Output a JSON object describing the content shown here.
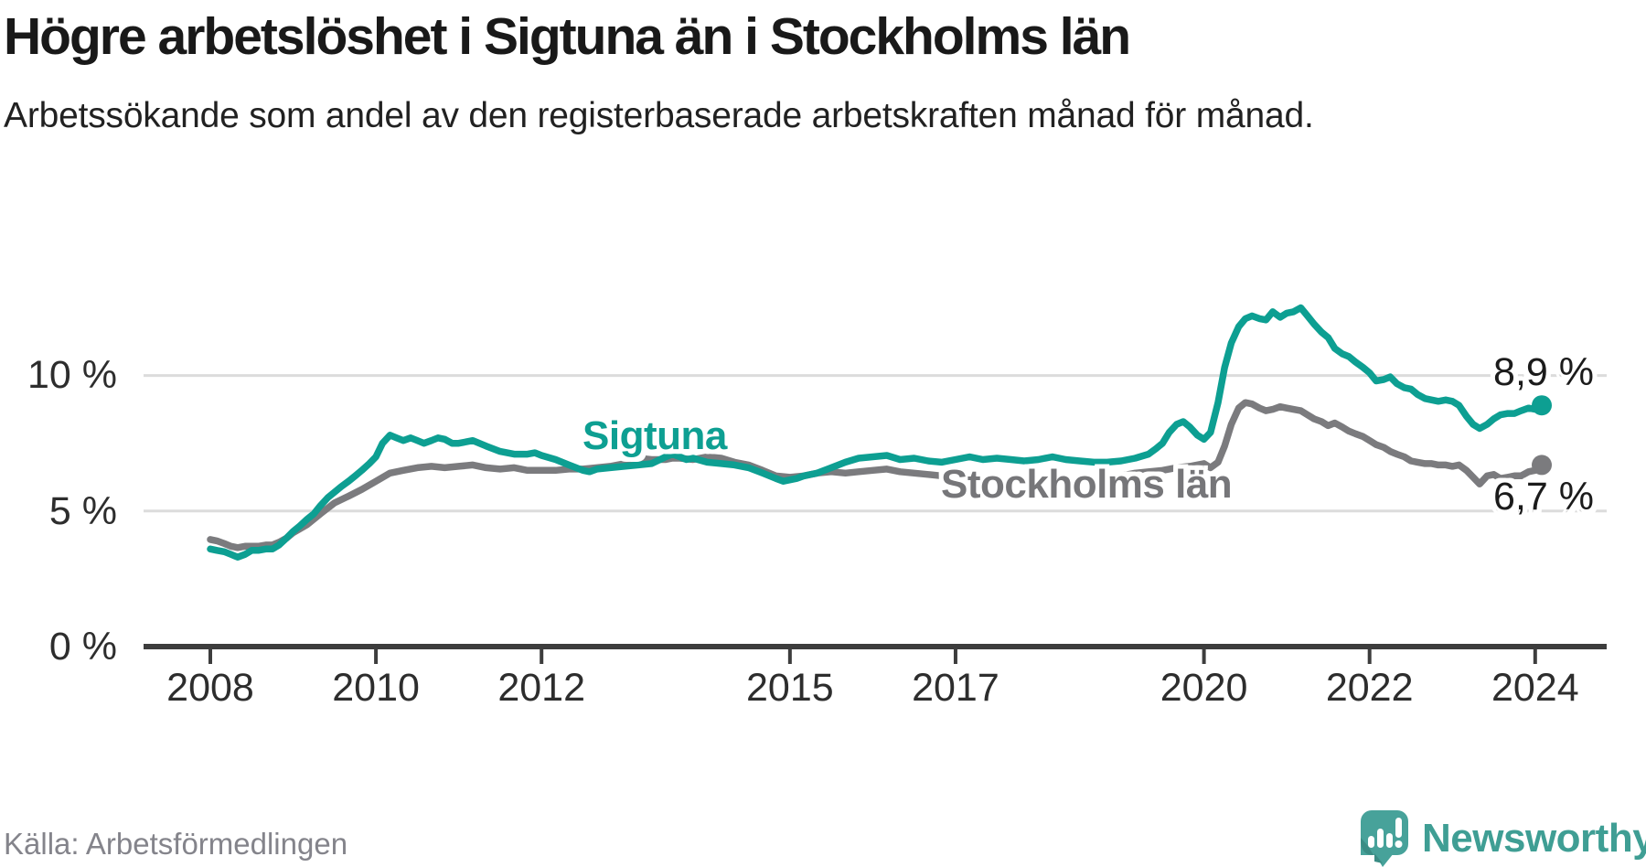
{
  "header": {
    "title": "Högre arbetslöshet i Sigtuna än i Stockholms län",
    "subtitle": "Arbetssökande som andel av den registerbaserade arbetskraften månad för månad."
  },
  "footer": {
    "source": "Källa: Arbetsförmedlingen",
    "logo_text": "Newsworthy"
  },
  "colors": {
    "sigtuna_teal": "#0d9f92",
    "stockholm_gray": "#7b7b7e",
    "grid": "#dcdcdc",
    "axis": "#3d3d3d",
    "logo_teal": "#47a29a",
    "logo_text_teal": "#3f9e94",
    "end_label_text": "#1b1b1b"
  },
  "chart_data": {
    "type": "line",
    "title": "Högre arbetslöshet i Sigtuna än i Stockholms län",
    "xlabel": "",
    "ylabel": "Arbetssökande som andel av den registerbaserade arbetskraften",
    "unit": "%",
    "xlim": [
      2007.6,
      2024.6
    ],
    "ylim": [
      0,
      13.5
    ],
    "grid": "horizontal",
    "legend_position": "inline-labels",
    "x_ticks": [
      2008,
      2010,
      2012,
      2015,
      2017,
      2020,
      2022,
      2024
    ],
    "y_ticks": [
      {
        "value": 0,
        "label": "0 %"
      },
      {
        "value": 5,
        "label": "5 %"
      },
      {
        "value": 10,
        "label": "10 %"
      }
    ],
    "series": [
      {
        "name": "Sigtuna",
        "color": "#0d9f92",
        "end_label": "8,9 %",
        "end_value": 8.9,
        "points": [
          [
            2008.0,
            3.6
          ],
          [
            2008.08,
            3.55
          ],
          [
            2008.17,
            3.5
          ],
          [
            2008.25,
            3.4
          ],
          [
            2008.33,
            3.3
          ],
          [
            2008.42,
            3.4
          ],
          [
            2008.5,
            3.55
          ],
          [
            2008.58,
            3.55
          ],
          [
            2008.67,
            3.6
          ],
          [
            2008.75,
            3.6
          ],
          [
            2008.83,
            3.75
          ],
          [
            2008.92,
            4.0
          ],
          [
            2009.0,
            4.25
          ],
          [
            2009.08,
            4.45
          ],
          [
            2009.17,
            4.7
          ],
          [
            2009.25,
            4.9
          ],
          [
            2009.33,
            5.2
          ],
          [
            2009.42,
            5.5
          ],
          [
            2009.5,
            5.7
          ],
          [
            2009.58,
            5.9
          ],
          [
            2009.67,
            6.1
          ],
          [
            2009.75,
            6.3
          ],
          [
            2009.83,
            6.5
          ],
          [
            2009.92,
            6.75
          ],
          [
            2010.0,
            7.0
          ],
          [
            2010.08,
            7.5
          ],
          [
            2010.17,
            7.8
          ],
          [
            2010.25,
            7.7
          ],
          [
            2010.33,
            7.6
          ],
          [
            2010.42,
            7.7
          ],
          [
            2010.5,
            7.6
          ],
          [
            2010.58,
            7.5
          ],
          [
            2010.67,
            7.6
          ],
          [
            2010.75,
            7.7
          ],
          [
            2010.83,
            7.65
          ],
          [
            2010.92,
            7.5
          ],
          [
            2011.0,
            7.5
          ],
          [
            2011.17,
            7.6
          ],
          [
            2011.33,
            7.4
          ],
          [
            2011.5,
            7.2
          ],
          [
            2011.67,
            7.1
          ],
          [
            2011.83,
            7.1
          ],
          [
            2011.92,
            7.15
          ],
          [
            2012.0,
            7.05
          ],
          [
            2012.17,
            6.9
          ],
          [
            2012.33,
            6.7
          ],
          [
            2012.5,
            6.5
          ],
          [
            2012.58,
            6.45
          ],
          [
            2012.67,
            6.55
          ],
          [
            2012.83,
            6.6
          ],
          [
            2013.0,
            6.65
          ],
          [
            2013.17,
            6.7
          ],
          [
            2013.33,
            6.75
          ],
          [
            2013.5,
            7.0
          ],
          [
            2013.58,
            7.1
          ],
          [
            2013.67,
            7.0
          ],
          [
            2013.75,
            6.9
          ],
          [
            2013.83,
            6.95
          ],
          [
            2014.0,
            6.8
          ],
          [
            2014.17,
            6.75
          ],
          [
            2014.33,
            6.7
          ],
          [
            2014.5,
            6.6
          ],
          [
            2014.67,
            6.4
          ],
          [
            2014.83,
            6.2
          ],
          [
            2014.92,
            6.1
          ],
          [
            2015.08,
            6.2
          ],
          [
            2015.17,
            6.3
          ],
          [
            2015.33,
            6.4
          ],
          [
            2015.5,
            6.6
          ],
          [
            2015.67,
            6.8
          ],
          [
            2015.83,
            6.95
          ],
          [
            2016.0,
            7.0
          ],
          [
            2016.17,
            7.05
          ],
          [
            2016.33,
            6.9
          ],
          [
            2016.5,
            6.95
          ],
          [
            2016.67,
            6.85
          ],
          [
            2016.83,
            6.8
          ],
          [
            2017.0,
            6.9
          ],
          [
            2017.17,
            7.0
          ],
          [
            2017.33,
            6.9
          ],
          [
            2017.5,
            6.95
          ],
          [
            2017.67,
            6.9
          ],
          [
            2017.83,
            6.85
          ],
          [
            2018.0,
            6.9
          ],
          [
            2018.17,
            7.0
          ],
          [
            2018.33,
            6.9
          ],
          [
            2018.5,
            6.85
          ],
          [
            2018.67,
            6.8
          ],
          [
            2018.83,
            6.8
          ],
          [
            2019.0,
            6.85
          ],
          [
            2019.17,
            6.95
          ],
          [
            2019.33,
            7.1
          ],
          [
            2019.42,
            7.3
          ],
          [
            2019.5,
            7.5
          ],
          [
            2019.58,
            7.9
          ],
          [
            2019.67,
            8.2
          ],
          [
            2019.75,
            8.3
          ],
          [
            2019.83,
            8.1
          ],
          [
            2019.92,
            7.8
          ],
          [
            2020.0,
            7.65
          ],
          [
            2020.08,
            7.9
          ],
          [
            2020.17,
            9.0
          ],
          [
            2020.25,
            10.3
          ],
          [
            2020.33,
            11.2
          ],
          [
            2020.42,
            11.8
          ],
          [
            2020.5,
            12.1
          ],
          [
            2020.58,
            12.2
          ],
          [
            2020.67,
            12.1
          ],
          [
            2020.75,
            12.05
          ],
          [
            2020.83,
            12.35
          ],
          [
            2020.92,
            12.15
          ],
          [
            2021.0,
            12.3
          ],
          [
            2021.08,
            12.35
          ],
          [
            2021.17,
            12.5
          ],
          [
            2021.25,
            12.2
          ],
          [
            2021.33,
            11.9
          ],
          [
            2021.42,
            11.6
          ],
          [
            2021.5,
            11.4
          ],
          [
            2021.58,
            11.0
          ],
          [
            2021.67,
            10.8
          ],
          [
            2021.75,
            10.7
          ],
          [
            2021.83,
            10.5
          ],
          [
            2021.92,
            10.3
          ],
          [
            2022.0,
            10.1
          ],
          [
            2022.08,
            9.8
          ],
          [
            2022.17,
            9.85
          ],
          [
            2022.25,
            9.95
          ],
          [
            2022.33,
            9.7
          ],
          [
            2022.42,
            9.55
          ],
          [
            2022.5,
            9.5
          ],
          [
            2022.58,
            9.3
          ],
          [
            2022.67,
            9.15
          ],
          [
            2022.75,
            9.1
          ],
          [
            2022.83,
            9.05
          ],
          [
            2022.92,
            9.1
          ],
          [
            2023.0,
            9.05
          ],
          [
            2023.08,
            8.9
          ],
          [
            2023.17,
            8.5
          ],
          [
            2023.25,
            8.2
          ],
          [
            2023.33,
            8.05
          ],
          [
            2023.42,
            8.2
          ],
          [
            2023.5,
            8.4
          ],
          [
            2023.58,
            8.55
          ],
          [
            2023.67,
            8.6
          ],
          [
            2023.75,
            8.6
          ],
          [
            2023.83,
            8.7
          ],
          [
            2023.92,
            8.8
          ],
          [
            2024.0,
            8.75
          ],
          [
            2024.08,
            8.9
          ]
        ]
      },
      {
        "name": "Stockholms län",
        "color": "#7b7b7e",
        "end_label": "6,7 %",
        "end_value": 6.7,
        "points": [
          [
            2008.0,
            3.95
          ],
          [
            2008.08,
            3.9
          ],
          [
            2008.17,
            3.8
          ],
          [
            2008.25,
            3.7
          ],
          [
            2008.33,
            3.65
          ],
          [
            2008.42,
            3.7
          ],
          [
            2008.5,
            3.7
          ],
          [
            2008.58,
            3.7
          ],
          [
            2008.67,
            3.75
          ],
          [
            2008.75,
            3.75
          ],
          [
            2008.83,
            3.85
          ],
          [
            2008.92,
            4.0
          ],
          [
            2009.0,
            4.2
          ],
          [
            2009.17,
            4.5
          ],
          [
            2009.33,
            4.9
          ],
          [
            2009.5,
            5.3
          ],
          [
            2009.67,
            5.55
          ],
          [
            2009.83,
            5.8
          ],
          [
            2010.0,
            6.1
          ],
          [
            2010.17,
            6.4
          ],
          [
            2010.33,
            6.5
          ],
          [
            2010.5,
            6.6
          ],
          [
            2010.67,
            6.65
          ],
          [
            2010.83,
            6.6
          ],
          [
            2011.0,
            6.65
          ],
          [
            2011.17,
            6.7
          ],
          [
            2011.33,
            6.6
          ],
          [
            2011.5,
            6.55
          ],
          [
            2011.67,
            6.6
          ],
          [
            2011.83,
            6.5
          ],
          [
            2012.0,
            6.5
          ],
          [
            2012.17,
            6.5
          ],
          [
            2012.33,
            6.55
          ],
          [
            2012.5,
            6.55
          ],
          [
            2012.67,
            6.6
          ],
          [
            2012.83,
            6.65
          ],
          [
            2013.0,
            6.75
          ],
          [
            2013.17,
            6.95
          ],
          [
            2013.33,
            6.9
          ],
          [
            2013.5,
            6.9
          ],
          [
            2013.58,
            6.95
          ],
          [
            2013.67,
            6.95
          ],
          [
            2013.83,
            6.9
          ],
          [
            2014.0,
            7.0
          ],
          [
            2014.17,
            6.95
          ],
          [
            2014.33,
            6.8
          ],
          [
            2014.5,
            6.7
          ],
          [
            2014.67,
            6.5
          ],
          [
            2014.83,
            6.3
          ],
          [
            2015.0,
            6.25
          ],
          [
            2015.17,
            6.3
          ],
          [
            2015.33,
            6.4
          ],
          [
            2015.5,
            6.45
          ],
          [
            2015.67,
            6.4
          ],
          [
            2015.83,
            6.45
          ],
          [
            2016.0,
            6.5
          ],
          [
            2016.17,
            6.55
          ],
          [
            2016.33,
            6.45
          ],
          [
            2016.5,
            6.4
          ],
          [
            2016.67,
            6.35
          ],
          [
            2016.83,
            6.3
          ],
          [
            2017.0,
            6.3
          ],
          [
            2017.17,
            6.35
          ],
          [
            2017.33,
            6.3
          ],
          [
            2017.5,
            6.25
          ],
          [
            2017.67,
            6.2
          ],
          [
            2017.83,
            6.2
          ],
          [
            2018.0,
            6.2
          ],
          [
            2018.17,
            6.25
          ],
          [
            2018.33,
            6.2
          ],
          [
            2018.5,
            6.15
          ],
          [
            2018.67,
            6.2
          ],
          [
            2018.83,
            6.25
          ],
          [
            2019.0,
            6.3
          ],
          [
            2019.17,
            6.4
          ],
          [
            2019.33,
            6.45
          ],
          [
            2019.5,
            6.5
          ],
          [
            2019.67,
            6.6
          ],
          [
            2019.83,
            6.65
          ],
          [
            2020.0,
            6.75
          ],
          [
            2020.08,
            6.6
          ],
          [
            2020.17,
            6.8
          ],
          [
            2020.25,
            7.4
          ],
          [
            2020.33,
            8.2
          ],
          [
            2020.42,
            8.8
          ],
          [
            2020.5,
            9.0
          ],
          [
            2020.58,
            8.95
          ],
          [
            2020.67,
            8.8
          ],
          [
            2020.75,
            8.7
          ],
          [
            2020.83,
            8.75
          ],
          [
            2020.92,
            8.85
          ],
          [
            2021.0,
            8.8
          ],
          [
            2021.08,
            8.75
          ],
          [
            2021.17,
            8.7
          ],
          [
            2021.25,
            8.55
          ],
          [
            2021.33,
            8.4
          ],
          [
            2021.42,
            8.3
          ],
          [
            2021.5,
            8.15
          ],
          [
            2021.58,
            8.25
          ],
          [
            2021.67,
            8.1
          ],
          [
            2021.75,
            7.95
          ],
          [
            2021.83,
            7.85
          ],
          [
            2021.92,
            7.75
          ],
          [
            2022.0,
            7.6
          ],
          [
            2022.08,
            7.45
          ],
          [
            2022.17,
            7.35
          ],
          [
            2022.25,
            7.2
          ],
          [
            2022.33,
            7.1
          ],
          [
            2022.42,
            7.0
          ],
          [
            2022.5,
            6.85
          ],
          [
            2022.58,
            6.8
          ],
          [
            2022.67,
            6.75
          ],
          [
            2022.75,
            6.75
          ],
          [
            2022.83,
            6.7
          ],
          [
            2022.92,
            6.7
          ],
          [
            2023.0,
            6.65
          ],
          [
            2023.08,
            6.7
          ],
          [
            2023.17,
            6.5
          ],
          [
            2023.25,
            6.25
          ],
          [
            2023.33,
            6.0
          ],
          [
            2023.42,
            6.3
          ],
          [
            2023.5,
            6.35
          ],
          [
            2023.58,
            6.2
          ],
          [
            2023.67,
            6.25
          ],
          [
            2023.75,
            6.3
          ],
          [
            2023.83,
            6.3
          ],
          [
            2023.92,
            6.45
          ],
          [
            2024.0,
            6.5
          ],
          [
            2024.08,
            6.7
          ]
        ]
      }
    ]
  }
}
